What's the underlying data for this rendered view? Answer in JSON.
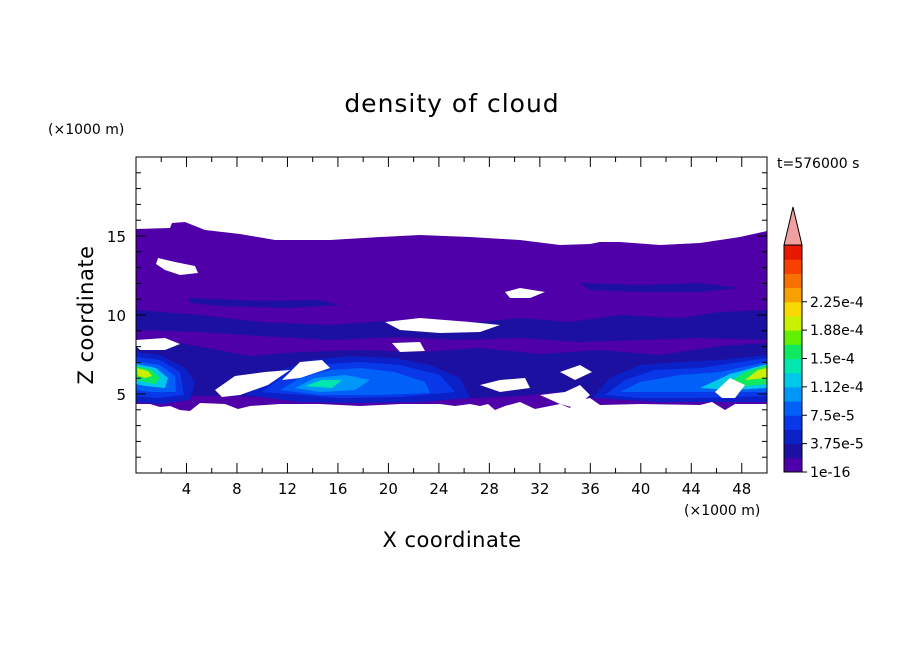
{
  "chart_data": {
    "type": "heatmap",
    "title": "density of cloud",
    "time_label": "t=576000 s",
    "xlabel": "X coordinate",
    "ylabel": "Z coordinate",
    "x_unit": "(×1000 m)",
    "y_unit": "(×1000 m)",
    "xlim": [
      0,
      50
    ],
    "ylim": [
      0,
      20
    ],
    "x_ticks": [
      4,
      8,
      12,
      16,
      20,
      24,
      28,
      32,
      36,
      40,
      44,
      48
    ],
    "y_ticks": [
      5,
      10,
      15
    ],
    "colorbar": {
      "levels": [
        "1e-16",
        "3.75e-5",
        "7.5e-5",
        "1.12e-4",
        "1.5e-4",
        "1.88e-4",
        "2.25e-4"
      ],
      "colors": [
        "#5000a8",
        "#1c10a0",
        "#0c20c8",
        "#0838e8",
        "#0060f8",
        "#0098f8",
        "#00c8e8",
        "#00e8b0",
        "#10e860",
        "#60f000",
        "#c8f000",
        "#f8d800",
        "#f8a000",
        "#f87000",
        "#f84000",
        "#e81800"
      ],
      "extend_color": "#f0a0a0"
    },
    "cloud_layer": {
      "base_km": 4.2,
      "top_km": 15.5
    },
    "maxima": [
      {
        "x": 1.5,
        "z": 6.5,
        "level": "1.5e-4"
      },
      {
        "x": 48.5,
        "z": 6.5,
        "level": "1.5e-4"
      },
      {
        "x": 15,
        "z": 5.8,
        "level": "1.12e-4"
      }
    ]
  }
}
